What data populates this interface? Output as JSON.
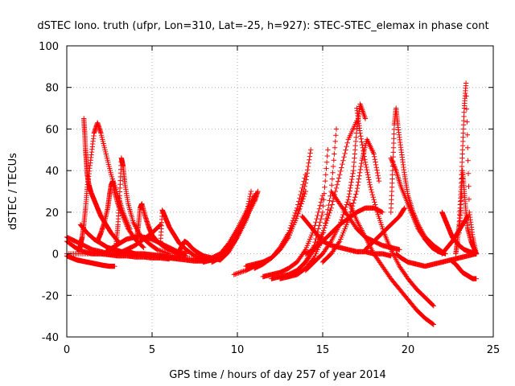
{
  "chart_data": {
    "type": "scatter",
    "title": "dSTEC Iono. truth (ufpr, Lon=310, Lat=-25, h=927): STEC-STEC_elemax in phase cont",
    "xlabel": "GPS time / hours of day 257 of year 2014",
    "ylabel": "dSTEC  / TECUs",
    "xlim": [
      0,
      25
    ],
    "ylim": [
      -40,
      100
    ],
    "xticks": [
      0,
      5,
      10,
      15,
      20,
      25
    ],
    "yticks": [
      -40,
      -20,
      0,
      20,
      40,
      60,
      80,
      100
    ],
    "grid": true,
    "marker": "+",
    "color": "#ff0000",
    "series": [
      {
        "x": [
          0.0,
          0.3,
          0.6,
          0.9,
          1.2,
          1.5,
          1.8,
          2.1,
          2.5,
          2.8
        ],
        "y": [
          -1,
          -2,
          -3,
          -3.5,
          -4,
          -4.5,
          -5,
          -5.5,
          -6,
          -6
        ]
      },
      {
        "x": [
          0.0,
          0.5,
          1.0,
          1.5,
          2.0,
          2.5,
          3.0,
          3.5,
          4.0
        ],
        "y": [
          8,
          6,
          4,
          2,
          1,
          0,
          0,
          0,
          0
        ]
      },
      {
        "x": [
          0.0,
          0.5,
          1.0,
          1.5,
          2.0,
          2.5,
          3.0,
          3.5,
          4.0,
          4.5,
          5.0,
          5.5,
          6.0
        ],
        "y": [
          6,
          3,
          1,
          0,
          0,
          -0.5,
          -1,
          -1,
          -1.5,
          -1.5,
          -2,
          -2,
          -2.5
        ]
      },
      {
        "x": [
          0.0,
          1.0,
          2.0,
          3.0,
          4.0,
          5.0,
          6.0,
          7.0,
          8.0,
          8.5
        ],
        "y": [
          0,
          0,
          0,
          0,
          0,
          -0.5,
          -1,
          -2,
          -2.5,
          -3
        ]
      },
      {
        "x": [
          0.7,
          0.8,
          0.9,
          1.0,
          1.1,
          1.2,
          1.4,
          1.6,
          1.8,
          2.0,
          2.3,
          2.6,
          3.0,
          3.3,
          3.7
        ],
        "y": [
          1,
          4,
          8,
          14,
          22,
          32,
          45,
          58,
          63,
          58,
          48,
          38,
          28,
          20,
          12
        ]
      },
      {
        "x": [
          1.0,
          1.05,
          1.1,
          1.15,
          1.2,
          1.3,
          1.4,
          1.6,
          1.8,
          2.0,
          2.3,
          2.6,
          3.0
        ],
        "y": [
          65,
          58,
          50,
          44,
          38,
          33,
          30,
          26,
          22,
          18,
          14,
          10,
          6
        ]
      },
      {
        "x": [
          0.8,
          1.2,
          1.6,
          2.0,
          2.4,
          2.8,
          3.2,
          3.6,
          4.0,
          4.5,
          5.0,
          5.5,
          6.0,
          6.5
        ],
        "y": [
          14,
          10,
          7,
          5,
          3,
          2,
          1,
          1,
          0,
          0,
          -0.5,
          -1,
          -1.5,
          -2
        ]
      },
      {
        "x": [
          1.8,
          2.0,
          2.2,
          2.4,
          2.5,
          2.6,
          2.7,
          2.8,
          3.0,
          3.3,
          3.6,
          4.0,
          4.5
        ],
        "y": [
          6,
          10,
          15,
          22,
          28,
          33,
          35,
          30,
          24,
          18,
          12,
          7,
          3
        ]
      },
      {
        "x": [
          2.9,
          3.0,
          3.1,
          3.2,
          3.3,
          3.4,
          3.6,
          3.9,
          4.3,
          4.8,
          5.3,
          6.0
        ],
        "y": [
          5,
          14,
          28,
          46,
          42,
          34,
          24,
          15,
          9,
          5,
          2,
          0
        ]
      },
      {
        "x": [
          2.3,
          2.7,
          3.1,
          3.5,
          4.0,
          4.5,
          5.0,
          5.5,
          6.0,
          6.5,
          7.0
        ],
        "y": [
          1,
          3,
          5,
          7,
          8,
          8,
          7,
          5,
          3,
          1,
          0
        ]
      },
      {
        "x": [
          4.1,
          4.2,
          4.3,
          4.4,
          4.6,
          4.8,
          5.0,
          5.3,
          5.6,
          6.0,
          6.5,
          7.0
        ],
        "y": [
          8,
          14,
          22,
          24,
          18,
          13,
          9,
          6,
          4,
          2,
          0,
          -1
        ]
      },
      {
        "x": [
          3.0,
          3.5,
          4.0,
          4.5,
          5.0,
          5.5
        ],
        "y": [
          0,
          2,
          4,
          7,
          10,
          14
        ]
      },
      {
        "x": [
          5.5,
          5.6,
          5.8,
          6.0,
          6.3,
          6.6,
          7.0,
          7.5,
          8.0,
          8.5
        ],
        "y": [
          6,
          21,
          17,
          13,
          9,
          5,
          2,
          -1,
          -2,
          -3
        ]
      },
      {
        "x": [
          5.5,
          6.0,
          6.5,
          7.0,
          7.5,
          8.0,
          8.5,
          9.0
        ],
        "y": [
          -1,
          -2,
          -2.5,
          -3,
          -3.5,
          -3.5,
          -3,
          -2
        ]
      },
      {
        "x": [
          6.5,
          6.7,
          6.9,
          7.1,
          7.3,
          7.6,
          8.0,
          8.5,
          9.0
        ],
        "y": [
          0,
          3,
          6,
          5,
          3,
          1,
          -1,
          -2,
          -3
        ]
      },
      {
        "x": [
          7.5,
          8.0,
          8.5,
          9.0,
          9.5,
          10.0,
          10.5,
          11.0
        ],
        "y": [
          -3,
          -3,
          -2,
          0,
          5,
          12,
          20,
          28
        ]
      },
      {
        "x": [
          8.0,
          8.5,
          9.0,
          9.5,
          10.0,
          10.5,
          11.0,
          11.2
        ],
        "y": [
          -4,
          -3,
          -1,
          3,
          9,
          17,
          25,
          30
        ]
      },
      {
        "x": [
          8.5,
          9.0,
          9.5,
          10.0,
          10.5,
          10.8,
          11.1
        ],
        "y": [
          -4,
          -2,
          2,
          8,
          16,
          23,
          29
        ]
      },
      {
        "x": [
          9.0,
          9.5,
          10.0,
          10.5,
          10.8
        ],
        "y": [
          -3,
          1,
          8,
          18,
          30
        ]
      },
      {
        "x": [
          9.8,
          10.5,
          11.0,
          11.5,
          12.0,
          12.5,
          13.0,
          13.5,
          14.0
        ],
        "y": [
          -10,
          -8,
          -6,
          -4,
          -2,
          2,
          8,
          18,
          30
        ]
      },
      {
        "x": [
          10.5,
          11.0,
          11.5,
          12.0,
          12.5,
          13.0,
          13.5,
          14.0,
          14.3
        ],
        "y": [
          -6,
          -5,
          -4,
          -2,
          2,
          8,
          18,
          34,
          50
        ]
      },
      {
        "x": [
          11.0,
          11.5,
          12.0,
          12.5,
          13.0,
          13.5,
          14.0
        ],
        "y": [
          -7,
          -5,
          -2,
          3,
          10,
          22,
          38
        ]
      },
      {
        "x": [
          11.5,
          12.0,
          12.5,
          13.0,
          13.5,
          14.0,
          14.5,
          15.0
        ],
        "y": [
          -11,
          -10,
          -9,
          -7,
          -4,
          2,
          12,
          28
        ]
      },
      {
        "x": [
          12.0,
          12.5,
          13.0,
          13.5,
          14.0,
          14.5,
          15.0,
          15.3
        ],
        "y": [
          -12,
          -11,
          -10,
          -8,
          -4,
          4,
          20,
          50
        ]
      },
      {
        "x": [
          12.5,
          13.0,
          13.5,
          14.0,
          14.5,
          15.0,
          15.5,
          15.8
        ],
        "y": [
          -12,
          -11,
          -10,
          -7,
          -2,
          8,
          30,
          60
        ]
      },
      {
        "x": [
          13.0,
          13.5,
          14.0,
          14.5,
          15.0,
          15.5,
          16.0,
          16.5,
          17.0
        ],
        "y": [
          -11,
          -8,
          -4,
          2,
          10,
          22,
          38,
          55,
          64
        ]
      },
      {
        "x": [
          14.0,
          14.5,
          15.0,
          15.5,
          16.0,
          16.5,
          16.8,
          17.0,
          17.2,
          17.5
        ],
        "y": [
          -8,
          -4,
          0,
          6,
          14,
          26,
          40,
          60,
          72,
          65
        ]
      },
      {
        "x": [
          15.0,
          15.5,
          16.0,
          16.5,
          17.0,
          17.3,
          17.6,
          18.0,
          18.3
        ],
        "y": [
          -4,
          0,
          6,
          16,
          30,
          45,
          55,
          48,
          35
        ]
      },
      {
        "x": [
          17.0,
          17.2,
          17.5,
          17.8,
          18.2,
          18.6,
          19.0,
          19.5,
          20.0,
          20.5,
          21.0,
          21.5
        ],
        "y": [
          70,
          58,
          44,
          32,
          20,
          10,
          2,
          -6,
          -12,
          -17,
          -21,
          -25
        ]
      },
      {
        "x": [
          16.6,
          17.0,
          17.5,
          18.0,
          18.5,
          19.0,
          19.5,
          20.0,
          20.5,
          21.0,
          21.5
        ],
        "y": [
          24,
          16,
          8,
          0,
          -6,
          -12,
          -17,
          -22,
          -27,
          -31,
          -34
        ]
      },
      {
        "x": [
          13.8,
          14.2,
          14.6,
          15.0,
          15.5,
          16.0,
          16.5,
          17.0,
          17.5,
          18.0,
          18.5,
          19.0
        ],
        "y": [
          18,
          14,
          10,
          6,
          4,
          3,
          2,
          1,
          1,
          0,
          0,
          -1
        ]
      },
      {
        "x": [
          14.0,
          14.5,
          15.0,
          15.5,
          16.0,
          16.5,
          17.0,
          17.5,
          18.0,
          18.5
        ],
        "y": [
          0,
          2,
          6,
          10,
          14,
          17,
          20,
          22,
          22,
          20
        ]
      },
      {
        "x": [
          15.5,
          16.0,
          16.5,
          17.0,
          17.5,
          18.0,
          18.5,
          19.0,
          19.5
        ],
        "y": [
          30,
          24,
          18,
          12,
          8,
          6,
          4,
          3,
          2
        ]
      },
      {
        "x": [
          19.0,
          19.1,
          19.2,
          19.3,
          19.4,
          19.6,
          19.8,
          20.0,
          20.3,
          20.6,
          21.0,
          21.5,
          22.0
        ],
        "y": [
          20,
          40,
          62,
          70,
          62,
          50,
          38,
          28,
          20,
          14,
          8,
          4,
          1
        ]
      },
      {
        "x": [
          19.0,
          19.3,
          19.6,
          20.0,
          20.3,
          20.6,
          21.0,
          21.4,
          21.8,
          22.2
        ],
        "y": [
          46,
          40,
          32,
          24,
          18,
          12,
          7,
          3,
          1,
          0
        ]
      },
      {
        "x": [
          19.3,
          19.6,
          20.0,
          20.5,
          21.0,
          21.5,
          22.0,
          22.5,
          23.0,
          23.5,
          24.0
        ],
        "y": [
          0,
          -2,
          -4,
          -5,
          -6,
          -5,
          -4,
          -3,
          -2,
          -1,
          0
        ]
      },
      {
        "x": [
          17.5,
          18.0,
          18.5,
          19.0,
          19.5,
          19.8
        ],
        "y": [
          2,
          6,
          10,
          14,
          18,
          22
        ]
      },
      {
        "x": [
          22.0,
          22.2,
          22.4,
          22.6,
          22.8,
          23.0,
          23.3,
          23.6,
          24.0
        ],
        "y": [
          20,
          16,
          12,
          8,
          6,
          4,
          2,
          1,
          0
        ]
      },
      {
        "x": [
          22.5,
          22.8,
          23.0,
          23.2,
          23.4,
          23.6,
          23.8,
          24.0
        ],
        "y": [
          -3,
          -5,
          -7,
          -9,
          -10,
          -11,
          -12,
          -12
        ]
      },
      {
        "x": [
          23.0,
          23.1,
          23.2,
          23.3,
          23.4,
          23.5,
          23.7,
          23.9,
          24.0
        ],
        "y": [
          10,
          22,
          40,
          30,
          20,
          12,
          6,
          2,
          0
        ]
      },
      {
        "x": [
          22.8,
          22.9,
          23.0,
          23.1,
          23.2,
          23.3,
          23.4,
          23.6,
          23.8,
          24.0
        ],
        "y": [
          0,
          6,
          14,
          30,
          50,
          70,
          82,
          20,
          8,
          0
        ]
      },
      {
        "x": [
          22.0,
          22.3,
          22.6,
          22.9,
          23.2,
          23.5
        ],
        "y": [
          0,
          3,
          6,
          10,
          14,
          18
        ]
      }
    ]
  }
}
